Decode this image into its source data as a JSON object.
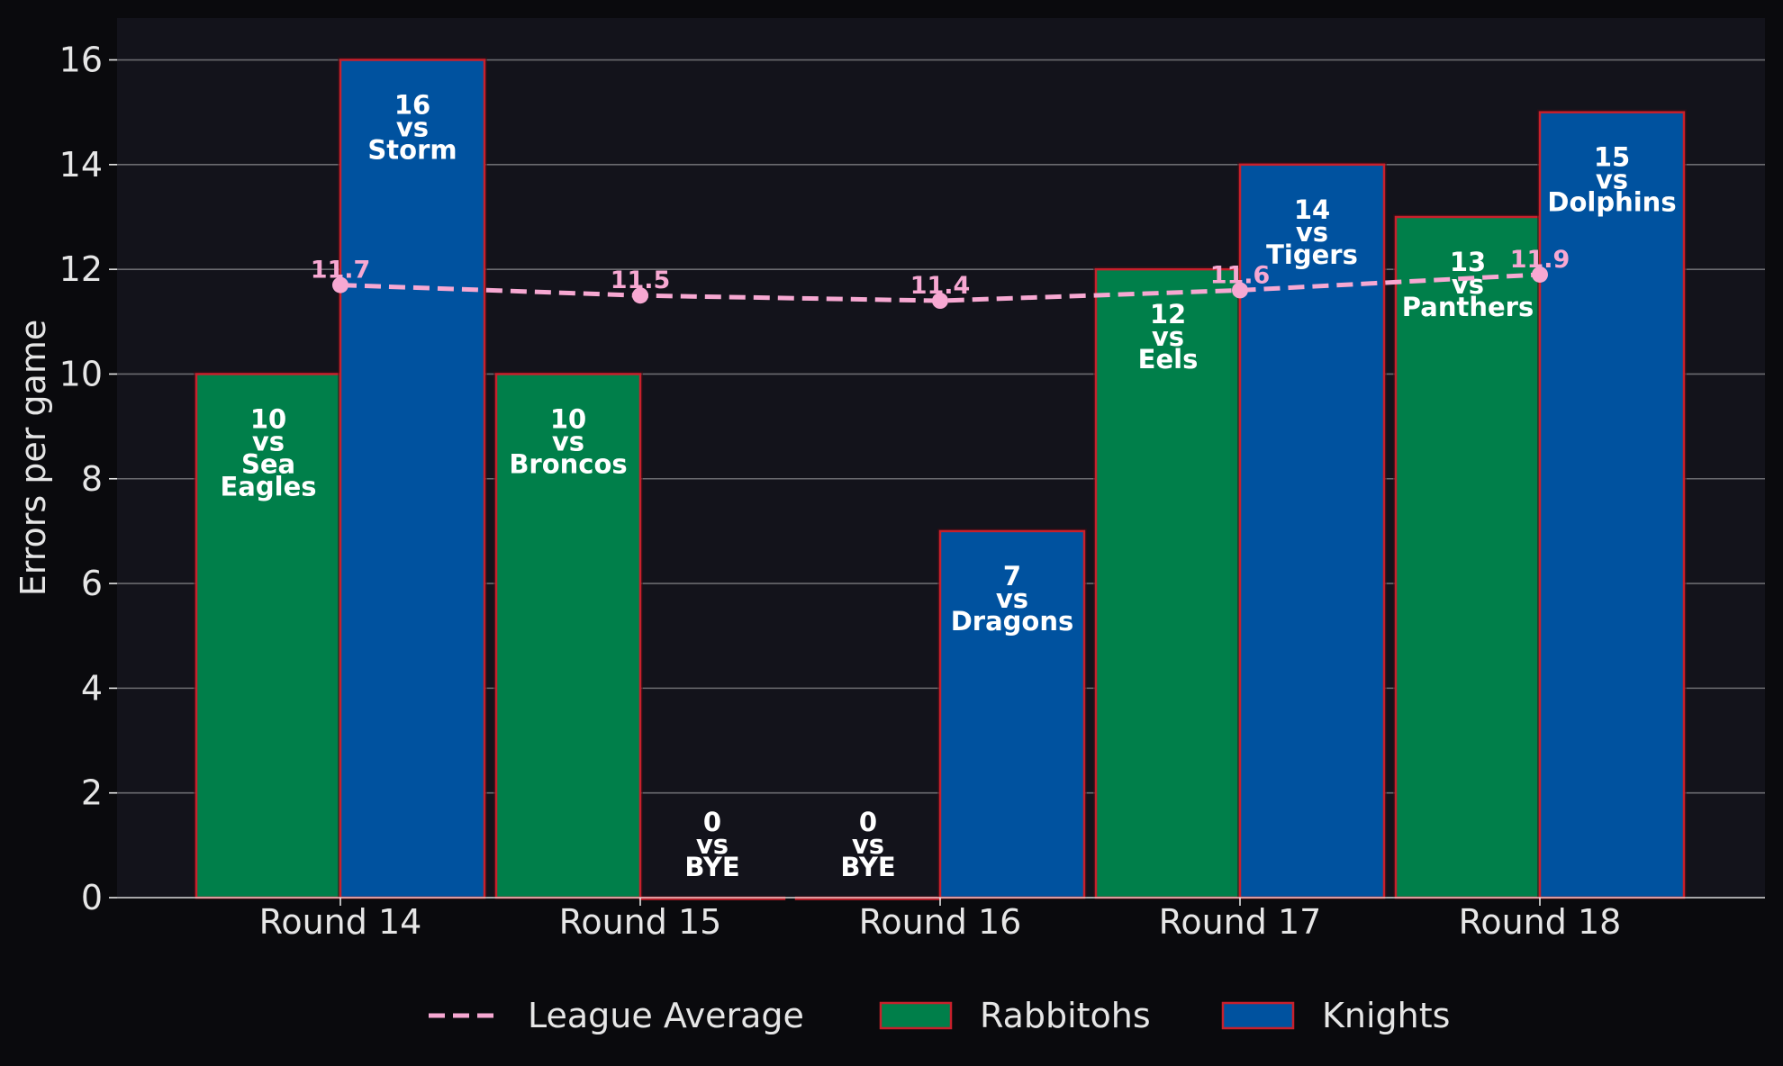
{
  "chart_data": {
    "type": "bar",
    "title": "",
    "xlabel": "",
    "ylabel": "Errors per game",
    "ylim": [
      0,
      16.8
    ],
    "yticks": [
      0,
      2,
      4,
      6,
      8,
      10,
      12,
      14,
      16
    ],
    "grid": "horizontal",
    "legend_position": "bottom",
    "categories": [
      "Round 14",
      "Round 15",
      "Round 16",
      "Round 17",
      "Round 18"
    ],
    "series": [
      {
        "name": "Rabbitohs",
        "color": "#007f4a",
        "values": [
          10,
          10,
          0,
          12,
          13
        ],
        "labels": [
          [
            "10",
            "vs",
            "Sea",
            "Eagles"
          ],
          [
            "10",
            "vs",
            "Broncos"
          ],
          [
            "0",
            "vs",
            "BYE"
          ],
          [
            "12",
            "vs",
            "Eels"
          ],
          [
            "13",
            "vs",
            "Panthers"
          ]
        ]
      },
      {
        "name": "Knights",
        "color": "#00529f",
        "values": [
          16,
          0,
          7,
          14,
          15
        ],
        "labels": [
          [
            "16",
            "vs",
            "Storm"
          ],
          [
            "0",
            "vs",
            "BYE"
          ],
          [
            "7",
            "vs",
            "Dragons"
          ],
          [
            "14",
            "vs",
            "Tigers"
          ],
          [
            "15",
            "vs",
            "Dolphins"
          ]
        ]
      }
    ],
    "line": {
      "name": "League Average",
      "color": "#f7a8d2",
      "style": "dashed",
      "values": [
        11.7,
        11.5,
        11.4,
        11.6,
        11.9
      ],
      "labels": [
        "11.7",
        "11.5",
        "11.4",
        "11.6",
        "11.9"
      ]
    },
    "colors": {
      "background": "#0a0a0d",
      "plot_background": "#13131b",
      "bar_edge": "#c8202c",
      "grid": "#6b6b70",
      "text": "#e6e6e6"
    }
  }
}
